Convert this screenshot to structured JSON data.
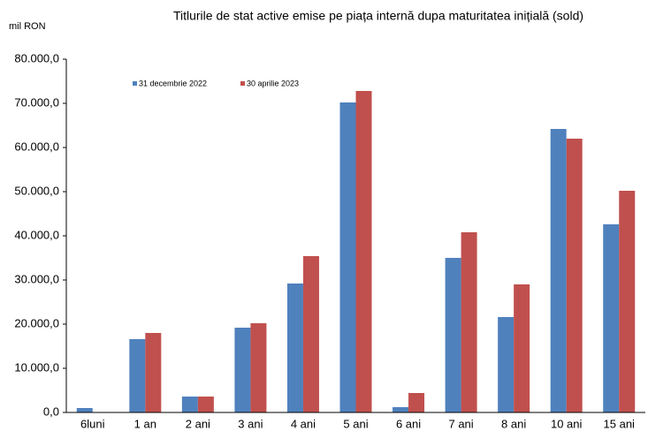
{
  "chart_data": {
    "type": "bar",
    "title": "Titlurile de stat active emise pe piața internă dupa maturitatea inițială (sold)",
    "y_label": "mil RON",
    "categories": [
      "6luni",
      "1 an",
      "2 ani",
      "3 ani",
      "4 ani",
      "5 ani",
      "6 ani",
      "7 ani",
      "8 ani",
      "10 ani",
      "15 ani"
    ],
    "series": [
      {
        "name": "31 decembrie 2022",
        "color": "#4f81bd",
        "values": [
          1000,
          16600,
          3600,
          19200,
          29200,
          70200,
          1200,
          35000,
          21600,
          64200,
          42600
        ]
      },
      {
        "name": "30 aprilie 2023",
        "color": "#c0504d",
        "values": [
          0,
          18000,
          3600,
          20200,
          35400,
          72800,
          4400,
          40800,
          29000,
          62000,
          50200
        ]
      }
    ],
    "ylim": [
      0,
      80000
    ],
    "yticks": [
      {
        "value": 0,
        "label": "0,0"
      },
      {
        "value": 10000,
        "label": "10.000,0"
      },
      {
        "value": 20000,
        "label": "20.000,0"
      },
      {
        "value": 30000,
        "label": "30.000,0"
      },
      {
        "value": 40000,
        "label": "40.000,0"
      },
      {
        "value": 50000,
        "label": "50.000,0"
      },
      {
        "value": 60000,
        "label": "60.000,0"
      },
      {
        "value": 70000,
        "label": "70.000,0"
      },
      {
        "value": 80000,
        "label": "80.000,0"
      }
    ],
    "legend": "top-left"
  }
}
